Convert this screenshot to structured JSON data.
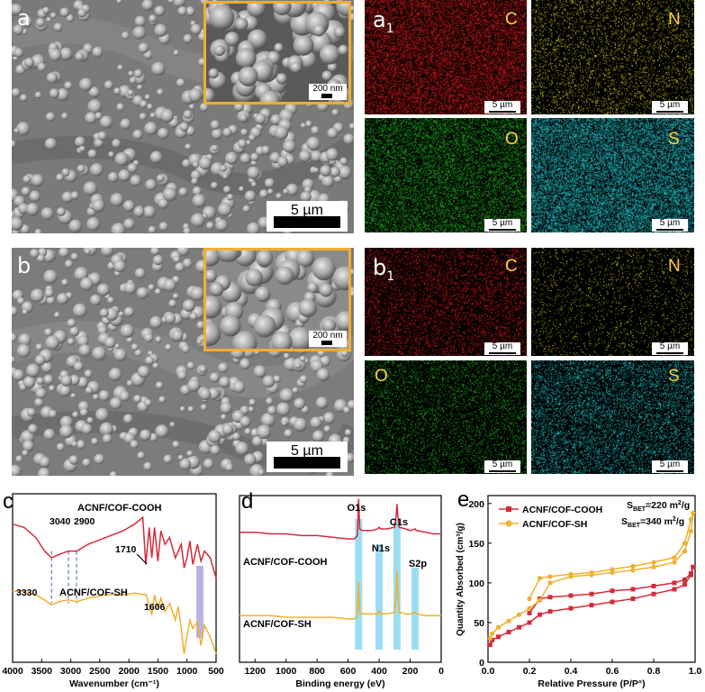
{
  "figure": {
    "panel_labels": {
      "a": "a",
      "a1": "a",
      "a1_sub": "1",
      "b": "b",
      "b1": "b",
      "b1_sub": "1",
      "c": "c",
      "d": "d",
      "e": "e"
    },
    "sem_scale": "5 µm",
    "inset_scale": "200 nm",
    "map_scale": "5 µm",
    "elements_a": [
      "C",
      "N",
      "O",
      "S"
    ],
    "elements_b": [
      "C",
      "N",
      "O",
      "S"
    ],
    "colors": {
      "C": "#c01818",
      "N": "#c8c820",
      "O": "#20a020",
      "S": "#20b8c0",
      "inset_border": "#f1ae33"
    }
  },
  "chart_data": [
    {
      "type": "line",
      "panel": "c",
      "xlabel": "Wavenumber (cm⁻¹)",
      "xlim": [
        4000,
        500
      ],
      "x_ticks": [
        "4000",
        "3500",
        "3000",
        "2500",
        "2000",
        "1500",
        "1000",
        "500"
      ],
      "series": [
        {
          "name": "ACNF/COF-COOH",
          "color": "#d42b3a",
          "x": [
            4000,
            3800,
            3600,
            3450,
            3330,
            3200,
            3040,
            2900,
            2700,
            2400,
            2100,
            1900,
            1760,
            1710,
            1650,
            1606,
            1560,
            1500,
            1450,
            1380,
            1300,
            1200,
            1100,
            1050,
            1000,
            950,
            900,
            820,
            760,
            700,
            600,
            500
          ],
          "y": [
            0.82,
            0.8,
            0.74,
            0.66,
            0.62,
            0.64,
            0.66,
            0.66,
            0.7,
            0.74,
            0.78,
            0.82,
            0.86,
            0.58,
            0.8,
            0.62,
            0.8,
            0.6,
            0.78,
            0.7,
            0.74,
            0.62,
            0.7,
            0.56,
            0.62,
            0.72,
            0.58,
            0.7,
            0.6,
            0.66,
            0.62,
            0.5
          ]
        },
        {
          "name": "ACNF/COF-SH",
          "color": "#f0b030",
          "x": [
            4000,
            3800,
            3600,
            3450,
            3330,
            3200,
            3040,
            2900,
            2700,
            2400,
            2100,
            1900,
            1700,
            1606,
            1560,
            1500,
            1450,
            1380,
            1300,
            1200,
            1150,
            1100,
            1050,
            1000,
            950,
            900,
            820,
            760,
            700,
            600,
            500
          ],
          "y": [
            0.42,
            0.42,
            0.4,
            0.37,
            0.34,
            0.36,
            0.37,
            0.36,
            0.38,
            0.4,
            0.4,
            0.41,
            0.4,
            0.28,
            0.4,
            0.32,
            0.38,
            0.3,
            0.35,
            0.25,
            0.33,
            0.2,
            0.05,
            0.16,
            0.25,
            0.2,
            0.24,
            0.1,
            0.22,
            0.15,
            0.05
          ]
        }
      ],
      "annotations": [
        "3330",
        "3040",
        "2900",
        "1710",
        "1606"
      ],
      "series_labels": [
        "ACNF/COF-COOH",
        "ACNF/COF-SH"
      ]
    },
    {
      "type": "line",
      "panel": "d",
      "xlabel": "Binding energy (eV)",
      "xlim": [
        1300,
        0
      ],
      "x_ticks": [
        "1200",
        "1000",
        "800",
        "600",
        "400",
        "200",
        "0"
      ],
      "peaks": [
        "O1s",
        "N1s",
        "C1s",
        "S2p"
      ],
      "series": [
        {
          "name": "ACNF/COF-COOH",
          "color": "#d42b3a",
          "x": [
            1300,
            1200,
            1100,
            1000,
            900,
            800,
            700,
            600,
            560,
            540,
            532,
            525,
            510,
            450,
            410,
            400,
            390,
            350,
            300,
            290,
            285,
            280,
            270,
            230,
            200,
            168,
            160,
            100,
            50,
            0
          ],
          "y": [
            0.78,
            0.78,
            0.77,
            0.77,
            0.76,
            0.76,
            0.75,
            0.74,
            0.74,
            0.76,
            0.98,
            0.8,
            0.79,
            0.79,
            0.8,
            0.81,
            0.8,
            0.8,
            0.81,
            0.88,
            0.95,
            0.88,
            0.81,
            0.8,
            0.79,
            0.8,
            0.79,
            0.78,
            0.77,
            0.77
          ]
        },
        {
          "name": "ACNF/COF-SH",
          "color": "#f0b030",
          "x": [
            1300,
            1200,
            1100,
            1000,
            900,
            800,
            700,
            600,
            560,
            540,
            532,
            525,
            510,
            450,
            410,
            400,
            390,
            350,
            300,
            290,
            285,
            280,
            270,
            230,
            200,
            168,
            160,
            100,
            50,
            0
          ],
          "y": [
            0.28,
            0.28,
            0.28,
            0.27,
            0.27,
            0.27,
            0.27,
            0.26,
            0.26,
            0.28,
            0.48,
            0.3,
            0.29,
            0.29,
            0.29,
            0.31,
            0.29,
            0.29,
            0.3,
            0.4,
            0.55,
            0.42,
            0.3,
            0.29,
            0.29,
            0.3,
            0.29,
            0.28,
            0.28,
            0.28
          ]
        }
      ],
      "series_labels": [
        "ACNF/COF-COOH",
        "ACNF/COF-SH"
      ]
    },
    {
      "type": "line",
      "panel": "e",
      "xlabel": "Relative Pressure (P/P°)",
      "ylabel": "Quantity Absorbed (cm³/g)",
      "xlim": [
        0,
        1.0
      ],
      "ylim": [
        0,
        200
      ],
      "x_ticks": [
        "0.0",
        "0.2",
        "0.4",
        "0.6",
        "0.8",
        "1.0"
      ],
      "y_ticks": [
        "0",
        "50",
        "100",
        "150",
        "200"
      ],
      "annotations": [
        "S_BET=220 m²/g",
        "S_BET=340 m²/g"
      ],
      "series": [
        {
          "name": "ACNF/COF-COOH",
          "color": "#d42b3a",
          "marker": "square",
          "x": [
            0.01,
            0.02,
            0.05,
            0.1,
            0.15,
            0.2,
            0.25,
            0.3,
            0.4,
            0.5,
            0.6,
            0.7,
            0.8,
            0.9,
            0.95,
            0.98,
            0.99,
            0.98,
            0.95,
            0.9,
            0.8,
            0.7,
            0.6,
            0.5,
            0.4,
            0.3,
            0.25,
            0.2
          ],
          "y": [
            22,
            28,
            32,
            38,
            44,
            50,
            60,
            64,
            68,
            72,
            76,
            80,
            86,
            92,
            98,
            110,
            120,
            112,
            104,
            100,
            96,
            92,
            90,
            86,
            84,
            82,
            80,
            62
          ]
        },
        {
          "name": "ACNF/COF-SH",
          "color": "#f0b030",
          "marker": "circle",
          "x": [
            0.01,
            0.02,
            0.05,
            0.1,
            0.15,
            0.2,
            0.25,
            0.3,
            0.4,
            0.5,
            0.6,
            0.7,
            0.8,
            0.9,
            0.95,
            0.98,
            0.99,
            0.98,
            0.95,
            0.9,
            0.8,
            0.7,
            0.6,
            0.5,
            0.4,
            0.3,
            0.25,
            0.2
          ],
          "y": [
            30,
            36,
            44,
            52,
            60,
            68,
            78,
            100,
            108,
            110,
            113,
            116,
            120,
            126,
            140,
            165,
            188,
            180,
            150,
            132,
            126,
            121,
            117,
            113,
            111,
            108,
            106,
            80
          ]
        }
      ],
      "legend_placement": "top-left"
    }
  ]
}
